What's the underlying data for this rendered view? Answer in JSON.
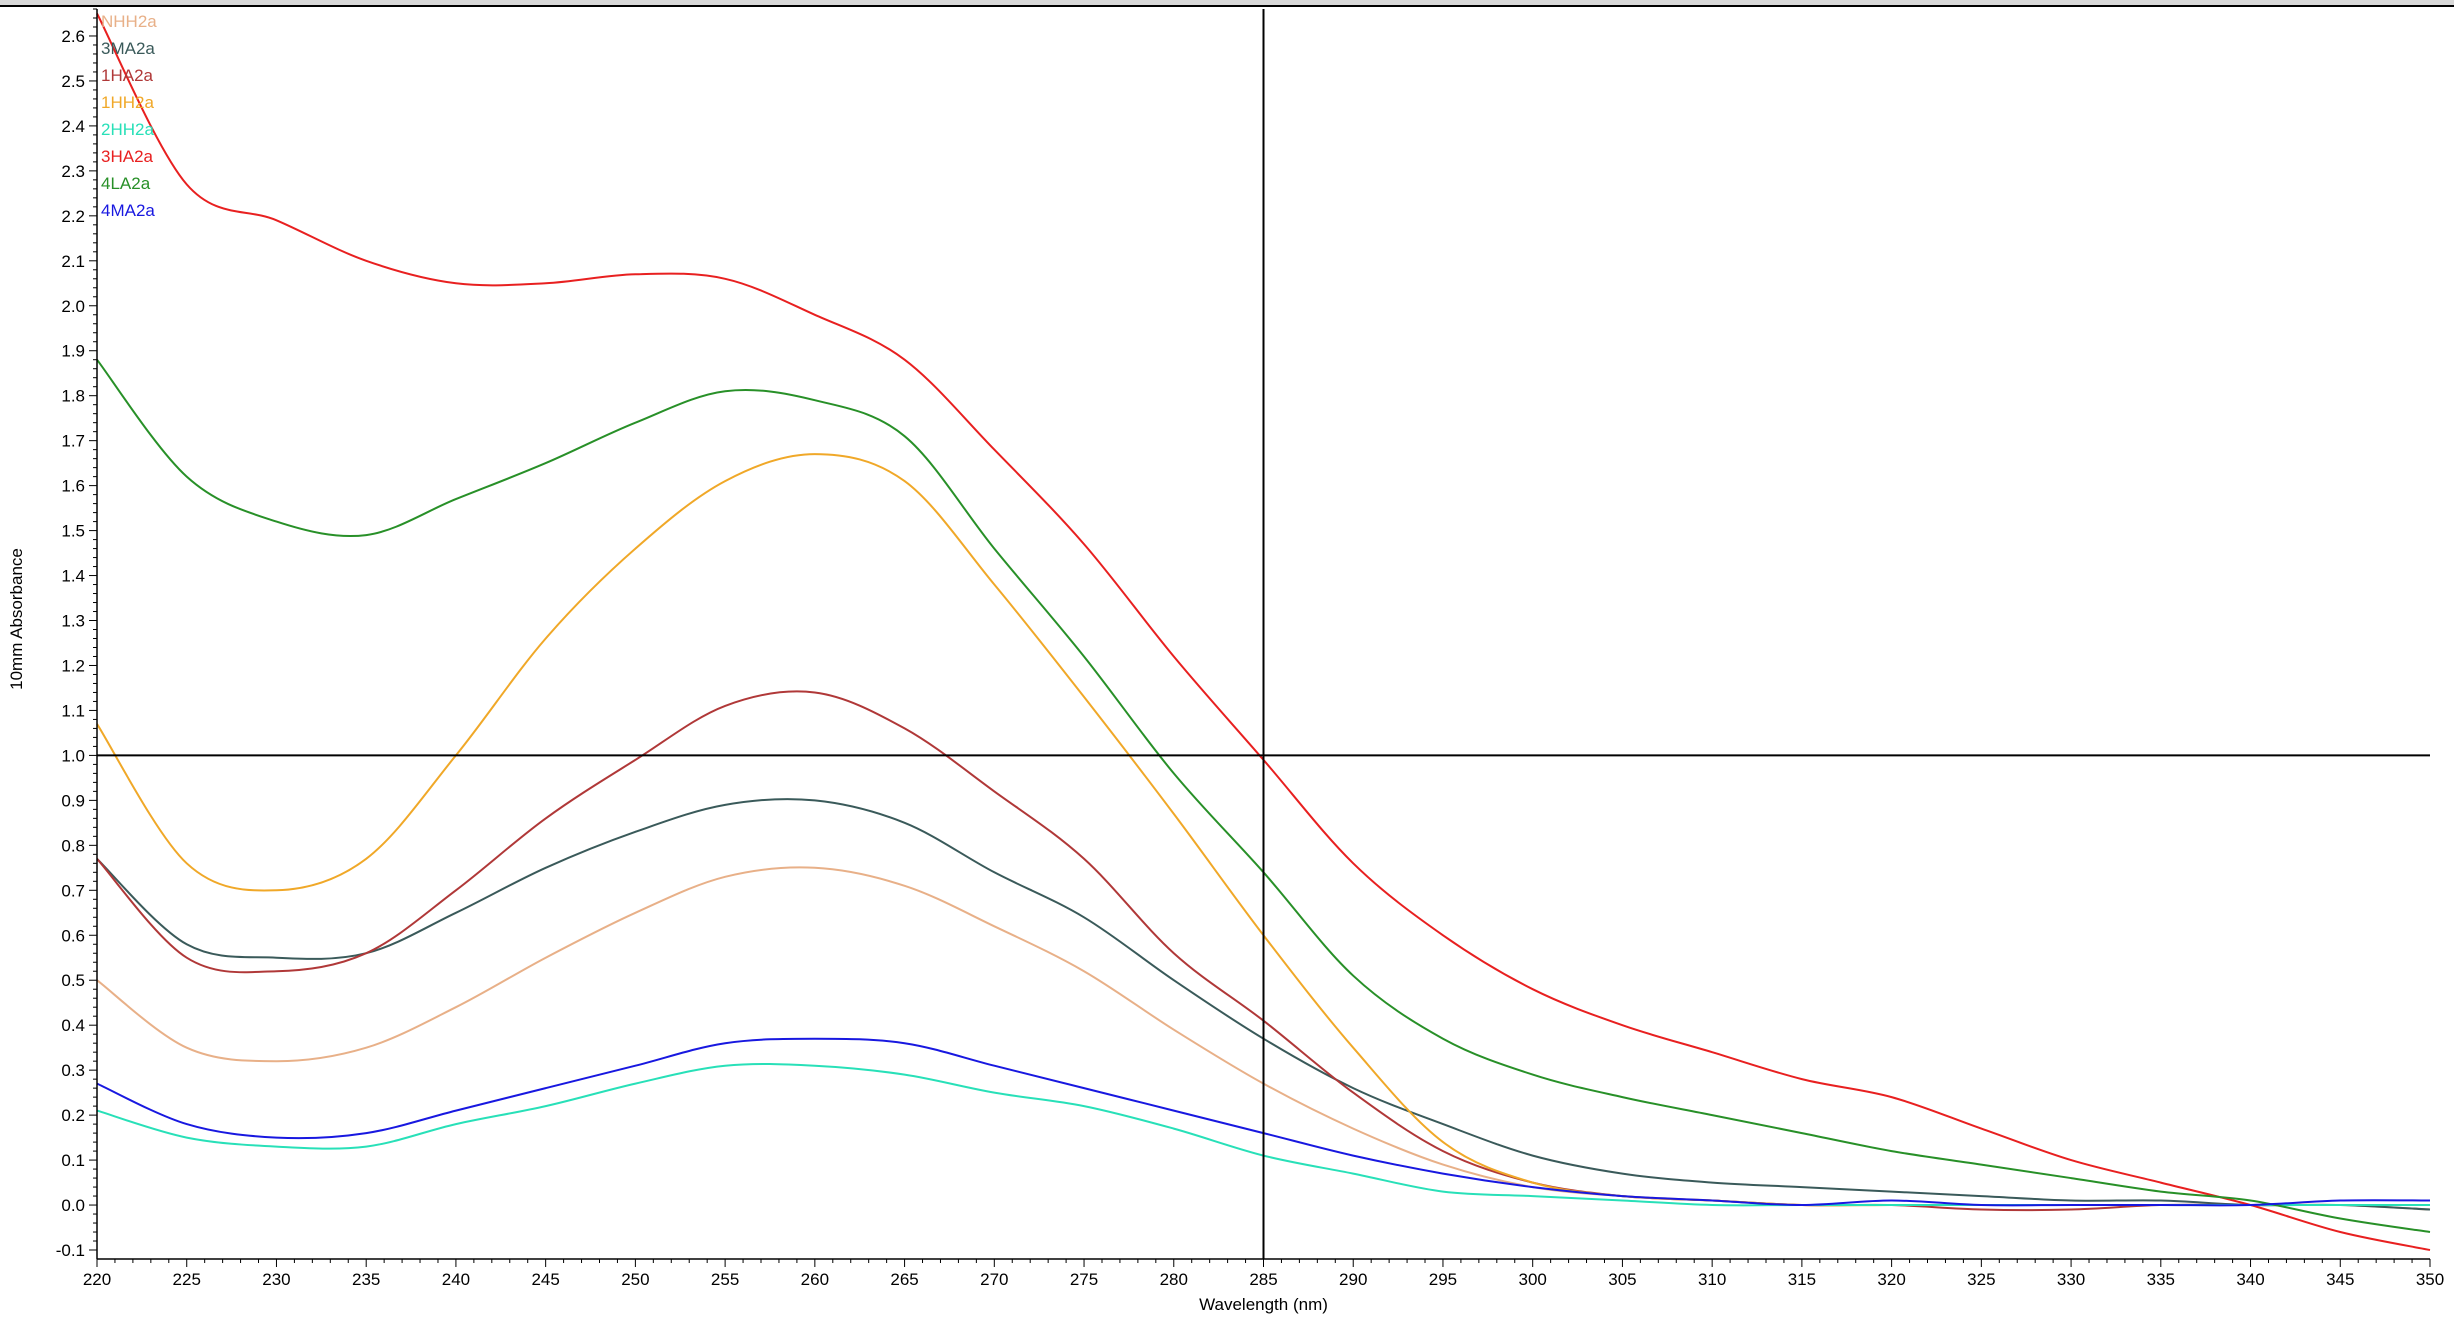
{
  "chart_data": {
    "type": "line",
    "title": "",
    "xlabel": "Wavelength (nm)",
    "ylabel": "10mm Absorbance",
    "xlim": [
      220,
      350
    ],
    "ylim": [
      -0.12,
      2.66
    ],
    "x_ticks": [
      220,
      225,
      230,
      235,
      240,
      245,
      250,
      255,
      260,
      265,
      270,
      275,
      280,
      285,
      290,
      295,
      300,
      305,
      310,
      315,
      320,
      325,
      330,
      335,
      340,
      345,
      350
    ],
    "x_tick_labels": [
      "220",
      "225",
      "230",
      "235",
      "240",
      "245",
      "250",
      "255",
      "260",
      "265",
      "270",
      "275",
      "280",
      "285",
      "290",
      "295",
      "300",
      "305",
      "310",
      "315",
      "320",
      "325",
      "330",
      "335",
      "340",
      "345",
      "350"
    ],
    "y_ticks": [
      -0.1,
      0.0,
      0.1,
      0.2,
      0.3,
      0.4,
      0.5,
      0.6,
      0.7,
      0.8,
      0.9,
      1.0,
      1.1,
      1.2,
      1.3,
      1.4,
      1.5,
      1.6,
      1.7,
      1.8,
      1.9,
      2.0,
      2.1,
      2.2,
      2.3,
      2.4,
      2.5,
      2.6
    ],
    "y_tick_labels": [
      "-0.1",
      "0.0",
      "0.1",
      "0.2",
      "0.3",
      "0.4",
      "0.5",
      "0.6",
      "0.7",
      "0.8",
      "0.9",
      "1.0",
      "1.1",
      "1.2",
      "1.3",
      "1.4",
      "1.5",
      "1.6",
      "1.7",
      "1.8",
      "1.9",
      "2.0",
      "2.1",
      "2.2",
      "2.3",
      "2.4",
      "2.5",
      "2.6"
    ],
    "grid": false,
    "legend_position": "top-left",
    "crosshair": {
      "x": 285,
      "y": 1.0,
      "color": "#000000"
    },
    "x": [
      220,
      225,
      230,
      235,
      240,
      245,
      250,
      255,
      260,
      265,
      270,
      275,
      280,
      285,
      290,
      295,
      300,
      305,
      310,
      315,
      320,
      325,
      330,
      335,
      340,
      345,
      350
    ],
    "series": [
      {
        "name": "NHH2a",
        "color": "#e8b088",
        "values": [
          0.5,
          0.35,
          0.32,
          0.35,
          0.44,
          0.55,
          0.65,
          0.73,
          0.75,
          0.71,
          0.62,
          0.52,
          0.39,
          0.27,
          0.17,
          0.09,
          0.04,
          0.02,
          0.01,
          0.0,
          0.0,
          0.0,
          0.0,
          0.0,
          0.0,
          0.0,
          -0.01
        ]
      },
      {
        "name": "3MA2a",
        "color": "#3a5a5a",
        "values": [
          0.77,
          0.58,
          0.55,
          0.56,
          0.65,
          0.75,
          0.83,
          0.89,
          0.9,
          0.85,
          0.74,
          0.64,
          0.5,
          0.37,
          0.26,
          0.18,
          0.11,
          0.07,
          0.05,
          0.04,
          0.03,
          0.02,
          0.01,
          0.01,
          0.0,
          0.0,
          -0.01
        ]
      },
      {
        "name": "1HA2a",
        "color": "#b03838",
        "values": [
          0.77,
          0.55,
          0.52,
          0.56,
          0.7,
          0.86,
          0.99,
          1.11,
          1.14,
          1.06,
          0.92,
          0.77,
          0.56,
          0.41,
          0.25,
          0.12,
          0.05,
          0.02,
          0.01,
          0.0,
          0.0,
          -0.01,
          -0.01,
          0.0,
          0.0,
          0.0,
          0.0
        ]
      },
      {
        "name": "1HH2a",
        "color": "#f0a828",
        "values": [
          1.07,
          0.76,
          0.7,
          0.77,
          1.0,
          1.26,
          1.46,
          1.61,
          1.67,
          1.61,
          1.38,
          1.13,
          0.87,
          0.6,
          0.35,
          0.14,
          0.05,
          0.02,
          0.01,
          0.0,
          0.0,
          0.0,
          0.0,
          0.0,
          0.0,
          0.0,
          0.0
        ]
      },
      {
        "name": "2HH2a",
        "color": "#28e0b8",
        "values": [
          0.21,
          0.15,
          0.13,
          0.13,
          0.18,
          0.22,
          0.27,
          0.31,
          0.31,
          0.29,
          0.25,
          0.22,
          0.17,
          0.11,
          0.07,
          0.03,
          0.02,
          0.01,
          0.0,
          0.0,
          0.0,
          0.0,
          0.0,
          0.0,
          0.0,
          0.0,
          0.0
        ]
      },
      {
        "name": "3HA2a",
        "color": "#e82020",
        "values": [
          2.65,
          2.27,
          2.19,
          2.1,
          2.05,
          2.05,
          2.07,
          2.06,
          1.98,
          1.88,
          1.68,
          1.47,
          1.22,
          0.99,
          0.76,
          0.6,
          0.48,
          0.4,
          0.34,
          0.28,
          0.24,
          0.17,
          0.1,
          0.05,
          0.0,
          -0.06,
          -0.1
        ]
      },
      {
        "name": "4LA2a",
        "color": "#289028",
        "values": [
          1.88,
          1.62,
          1.52,
          1.49,
          1.57,
          1.65,
          1.74,
          1.81,
          1.79,
          1.71,
          1.46,
          1.22,
          0.96,
          0.74,
          0.51,
          0.37,
          0.29,
          0.24,
          0.2,
          0.16,
          0.12,
          0.09,
          0.06,
          0.03,
          0.01,
          -0.03,
          -0.06
        ]
      },
      {
        "name": "4MA2a",
        "color": "#1818e0",
        "values": [
          0.27,
          0.18,
          0.15,
          0.16,
          0.21,
          0.26,
          0.31,
          0.36,
          0.37,
          0.36,
          0.31,
          0.26,
          0.21,
          0.16,
          0.11,
          0.07,
          0.04,
          0.02,
          0.01,
          0.0,
          0.01,
          0.0,
          0.0,
          0.0,
          0.0,
          0.01,
          0.01
        ]
      }
    ]
  }
}
